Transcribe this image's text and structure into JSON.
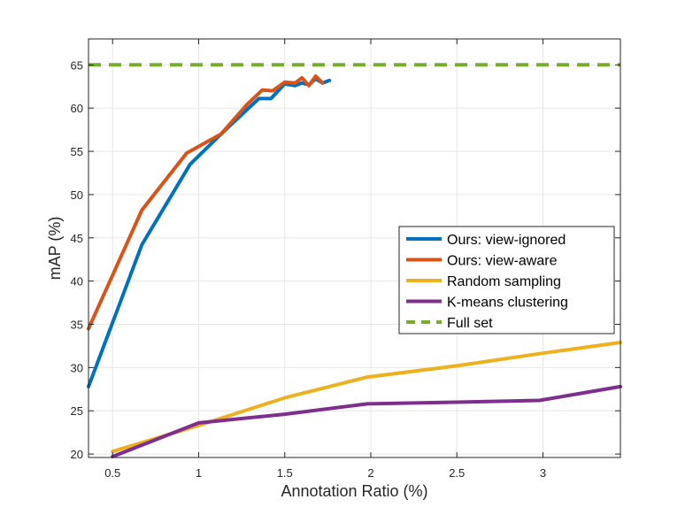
{
  "chart_data": {
    "type": "line",
    "title": "",
    "xlabel": "Annotation Ratio (%)",
    "ylabel": "mAP (%)",
    "xlim": [
      0.36,
      3.45
    ],
    "ylim": [
      19.6,
      68.0
    ],
    "xticks": [
      0.5,
      1,
      1.5,
      2,
      2.5,
      3
    ],
    "xtick_labels": [
      "0.5",
      "1",
      "1.5",
      "2",
      "2.5",
      "3"
    ],
    "yticks": [
      20,
      25,
      30,
      35,
      40,
      45,
      50,
      55,
      60,
      65
    ],
    "ytick_labels": [
      "20",
      "25",
      "30",
      "35",
      "40",
      "45",
      "50",
      "55",
      "60",
      "65"
    ],
    "grid": true,
    "legend_position": "center-right",
    "series": [
      {
        "name": "Ours: view-ignored",
        "color": "#0072BD",
        "dash": false,
        "x": [
          0.36,
          0.67,
          0.95,
          1.13,
          1.28,
          1.35,
          1.42,
          1.5,
          1.56,
          1.6,
          1.64,
          1.68,
          1.72,
          1.76
        ],
        "y": [
          27.8,
          44.2,
          53.5,
          57.0,
          59.8,
          61.1,
          61.1,
          62.8,
          62.6,
          62.9,
          62.7,
          63.4,
          62.9,
          63.2
        ]
      },
      {
        "name": "Ours: view-aware",
        "color": "#D95319",
        "dash": false,
        "x": [
          0.36,
          0.67,
          0.93,
          1.13,
          1.28,
          1.37,
          1.43,
          1.5,
          1.56,
          1.6,
          1.64,
          1.68,
          1.72
        ],
        "y": [
          34.5,
          48.2,
          54.8,
          57.0,
          60.4,
          62.1,
          62.0,
          63.0,
          62.9,
          63.5,
          62.6,
          63.7,
          62.9
        ]
      },
      {
        "name": "Random sampling",
        "color": "#EDB120",
        "dash": false,
        "x": [
          0.5,
          1.0,
          1.5,
          1.98,
          2.5,
          2.98,
          3.45
        ],
        "y": [
          20.3,
          23.3,
          26.5,
          28.9,
          30.2,
          31.6,
          32.9
        ]
      },
      {
        "name": "K-means clustering",
        "color": "#7E2F8E",
        "dash": false,
        "x": [
          0.5,
          1.0,
          1.5,
          1.98,
          2.5,
          2.98,
          3.45
        ],
        "y": [
          19.7,
          23.6,
          24.6,
          25.8,
          26.0,
          26.2,
          27.8
        ]
      },
      {
        "name": "Full set",
        "color": "#77AC30",
        "dash": true,
        "x": [
          0.36,
          3.45
        ],
        "y": [
          65.0,
          65.0
        ]
      }
    ]
  }
}
